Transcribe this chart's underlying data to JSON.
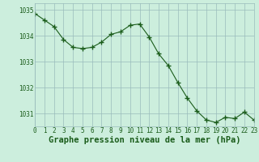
{
  "hours": [
    0,
    1,
    2,
    3,
    4,
    5,
    6,
    7,
    8,
    9,
    10,
    11,
    12,
    13,
    14,
    15,
    16,
    17,
    18,
    19,
    20,
    21,
    22,
    23
  ],
  "pressure": [
    1034.85,
    1034.6,
    1034.35,
    1033.85,
    1033.55,
    1033.5,
    1033.55,
    1033.75,
    1034.05,
    1034.15,
    1034.4,
    1034.45,
    1033.95,
    1033.3,
    1032.85,
    1032.2,
    1031.6,
    1031.1,
    1030.75,
    1030.65,
    1030.85,
    1030.8,
    1031.05,
    1030.75
  ],
  "line_color": "#1a5c1a",
  "marker_color": "#1a5c1a",
  "bg_color": "#cceedd",
  "grid_color": "#99bbbb",
  "axis_label_color": "#1a5c1a",
  "tick_label_color": "#1a5c1a",
  "xlabel": "Graphe pression niveau de la mer (hPa)",
  "ylim": [
    1030.5,
    1035.25
  ],
  "yticks": [
    1031,
    1032,
    1033,
    1034,
    1035
  ],
  "xticks": [
    0,
    1,
    2,
    3,
    4,
    5,
    6,
    7,
    8,
    9,
    10,
    11,
    12,
    13,
    14,
    15,
    16,
    17,
    18,
    19,
    20,
    21,
    22,
    23
  ],
  "tick_fontsize": 5.5,
  "label_fontsize": 7.5
}
